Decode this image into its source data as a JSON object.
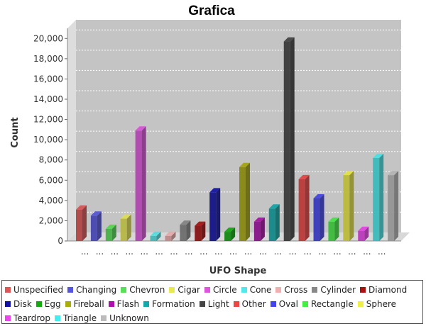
{
  "chart_data": {
    "type": "bar",
    "title": "Grafica",
    "xlabel": "UFO Shape",
    "ylabel": "Count",
    "ylim": [
      0,
      21000
    ],
    "yticks": [
      0,
      2000,
      4000,
      6000,
      8000,
      10000,
      12000,
      14000,
      16000,
      18000,
      20000
    ],
    "ytick_labels": [
      "0",
      "2,000",
      "4,000",
      "6,000",
      "8,000",
      "10,000",
      "12,000",
      "14,000",
      "16,000",
      "18,000",
      "20,000"
    ],
    "category_tick_label": "...",
    "grid": true,
    "legend_position": "bottom",
    "series": [
      {
        "name": "Unspecified",
        "value": 3100,
        "color": "#e05555"
      },
      {
        "name": "Changing",
        "value": 2500,
        "color": "#5555e0"
      },
      {
        "name": "Chevron",
        "value": 1200,
        "color": "#55e055"
      },
      {
        "name": "Cigar",
        "value": 2200,
        "color": "#e8e855"
      },
      {
        "name": "Circle",
        "value": 10900,
        "color": "#e055e0"
      },
      {
        "name": "Cone",
        "value": 500,
        "color": "#55e8e8"
      },
      {
        "name": "Cross",
        "value": 500,
        "color": "#f0b0b0"
      },
      {
        "name": "Cylinder",
        "value": 1600,
        "color": "#888888"
      },
      {
        "name": "Diamond",
        "value": 1500,
        "color": "#aa1111"
      },
      {
        "name": "Disk",
        "value": 4800,
        "color": "#1111aa"
      },
      {
        "name": "Egg",
        "value": 900,
        "color": "#11aa11"
      },
      {
        "name": "Fireball",
        "value": 7300,
        "color": "#aaaa11"
      },
      {
        "name": "Flash",
        "value": 1900,
        "color": "#aa11aa"
      },
      {
        "name": "Formation",
        "value": 3200,
        "color": "#11aaaa"
      },
      {
        "name": "Light",
        "value": 19700,
        "color": "#444444"
      },
      {
        "name": "Other",
        "value": 6100,
        "color": "#ee4444"
      },
      {
        "name": "Oval",
        "value": 4200,
        "color": "#4444ee"
      },
      {
        "name": "Rectangle",
        "value": 1900,
        "color": "#44ee44"
      },
      {
        "name": "Sphere",
        "value": 6500,
        "color": "#eeee44"
      },
      {
        "name": "Teardrop",
        "value": 1000,
        "color": "#ee44ee"
      },
      {
        "name": "Triangle",
        "value": 8200,
        "color": "#44eeee"
      },
      {
        "name": "Unknown",
        "value": 6500,
        "color": "#bbbbbb"
      }
    ]
  }
}
